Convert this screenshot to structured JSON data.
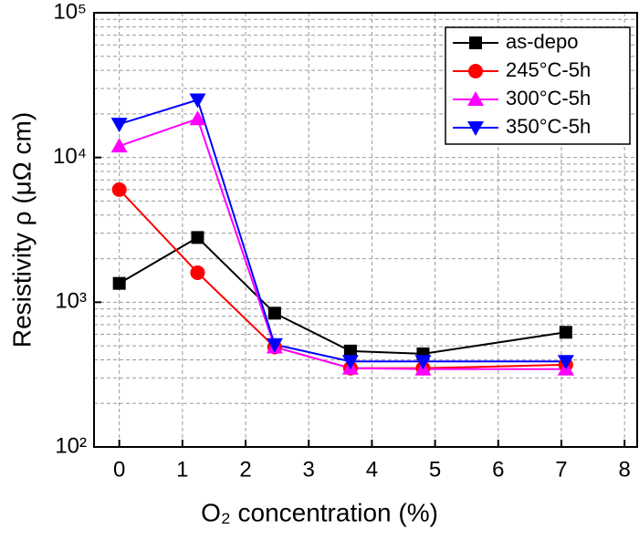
{
  "chart_data": {
    "type": "line",
    "x_label": "O₂ concentration (%)",
    "y_label": "Resistivity ρ (μΩ cm)",
    "x": [
      0,
      1.24,
      2.46,
      3.66,
      4.81,
      7.07
    ],
    "series": [
      {
        "name": "as-depo",
        "color": "#000000",
        "marker": "square",
        "values": [
          1350,
          2800,
          840,
          460,
          440,
          620
        ]
      },
      {
        "name": "245°C-5h",
        "color": "#ff0000",
        "marker": "circle",
        "values": [
          6000,
          1600,
          490,
          350,
          350,
          370
        ]
      },
      {
        "name": "300°C-5h",
        "color": "#ff00ff",
        "marker": "triangle-up",
        "values": [
          12000,
          18500,
          490,
          350,
          345,
          345
        ]
      },
      {
        "name": "350°C-5h",
        "color": "#0000ff",
        "marker": "triangle-down",
        "values": [
          17000,
          25000,
          510,
          390,
          390,
          390
        ]
      }
    ],
    "xlim": [
      -0.4,
      8.2
    ],
    "xticks": [
      0,
      1,
      2,
      3,
      4,
      5,
      6,
      7,
      8
    ],
    "ylim": [
      100,
      100000
    ],
    "ylog": true,
    "yticks": [
      {
        "value": 100,
        "label": "10²"
      },
      {
        "value": 1000,
        "label": "10³"
      },
      {
        "value": 10000,
        "label": "10⁴"
      },
      {
        "value": 100000,
        "label": "10⁵"
      }
    ],
    "yminorticks": [
      200,
      300,
      400,
      500,
      600,
      700,
      800,
      900,
      2000,
      3000,
      4000,
      5000,
      6000,
      7000,
      8000,
      9000,
      20000,
      30000,
      40000,
      50000,
      60000,
      70000,
      80000,
      90000
    ],
    "grid": true,
    "legend": "upper right"
  }
}
